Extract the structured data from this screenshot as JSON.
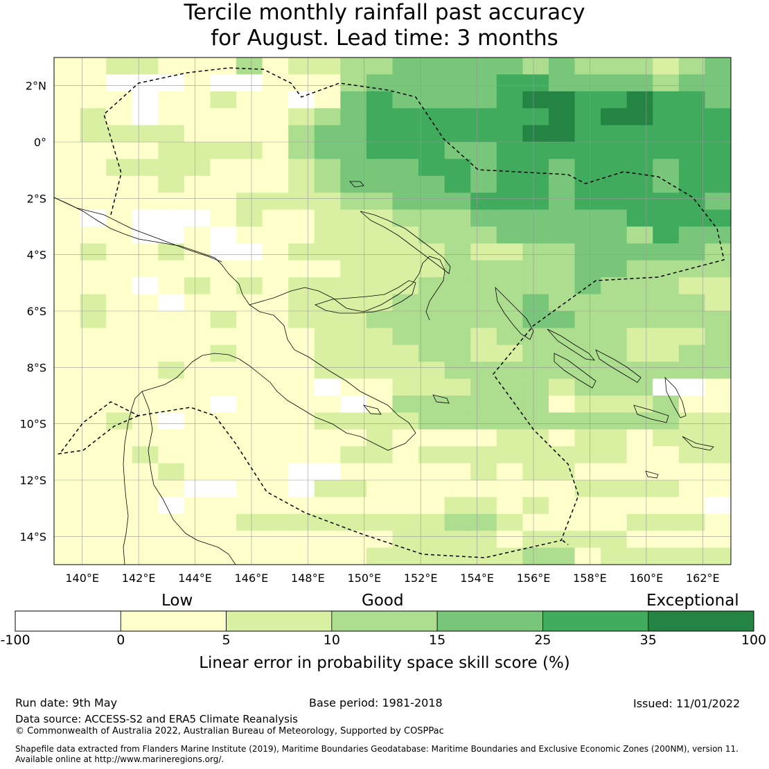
{
  "title": {
    "line1": "Tercile monthly rainfall past accuracy",
    "line2": "for August. Lead time: 3 months"
  },
  "map": {
    "lon_range": [
      139.0,
      163.0
    ],
    "lat_range": [
      -15.0,
      3.0
    ],
    "lon_ticks": [
      "140°E",
      "142°E",
      "144°E",
      "146°E",
      "148°E",
      "150°E",
      "152°E",
      "154°E",
      "156°E",
      "158°E",
      "160°E",
      "162°E"
    ],
    "lat_ticks": [
      "2°N",
      "0°",
      "2°S",
      "4°S",
      "6°S",
      "8°S",
      "10°S",
      "12°S",
      "14°S"
    ],
    "grid": true,
    "cell_size_deg": 0.833,
    "color_levels": [
      "#ffffff",
      "#ffffcc",
      "#d9f0a3",
      "#addd8e",
      "#78c679",
      "#41ab5d",
      "#238443"
    ],
    "cells_rows_north_to_south": [
      "11221113122334444434333234",
      "11000100111344444554444344",
      "11101121101454444566556554",
      "12101111123455555556566555",
      "12222111134455555566555555",
      "11112222134455544555555555",
      "11222211123444554554555455",
      "11112111123444454554555455",
      "11111112222334445554555554",
      "10100012112223334444445555",
      "11100101112222333444443544",
      "12112100122222232233444443",
      "11111111111222233333443333",
      "11101212122222333333433322",
      "12110111122223333343333332",
      "12111121122233333344333333",
      "11111111112223332333332223",
      "11111121112222332233332233",
      "11112111112222233333333333",
      "11111111110112223332333001",
      "11111101111013333331222311",
      "11210111112222333333333322",
      "11111111111121111221221222",
      "11121111111221222222221122",
      "11112111100111112122111111",
      "11111001102211111111222211",
      "11110111111111122121111110",
      "11111112222222233211112221",
      "11111111111112222122221111",
      "11111111111122222233122222"
    ]
  },
  "colorbar": {
    "ticks": [
      "-100",
      "0",
      "5",
      "10",
      "15",
      "25",
      "35",
      "100"
    ],
    "colors": [
      "#ffffff",
      "#ffffcc",
      "#d9f0a3",
      "#addd8e",
      "#78c679",
      "#41ab5d",
      "#238443"
    ],
    "categories": {
      "low": "Low",
      "good": "Good",
      "exceptional": "Exceptional"
    },
    "title": "Linear error in probability space skill score (%)"
  },
  "footer": {
    "run_date": "Run date: 9th May",
    "base_period": "Base period: 1981-2018",
    "issued": "Issued: 11/01/2022",
    "data_source": "Data source: ACCESS-S2 and ERA5 Climate Reanalysis",
    "copyright": "© Commonwealth of Australia 2022, Australian Bureau of Meteorology, Supported by COSPPac",
    "shapefile_line1": "Shapefile data extracted from Flanders Marine Institute (2019), Maritime Boundaries Geodatabase: Maritime Boundaries and Exclusive Economic Zones (200NM), version 11.",
    "shapefile_line2": "Available online at http://www.marineregions.org/."
  }
}
